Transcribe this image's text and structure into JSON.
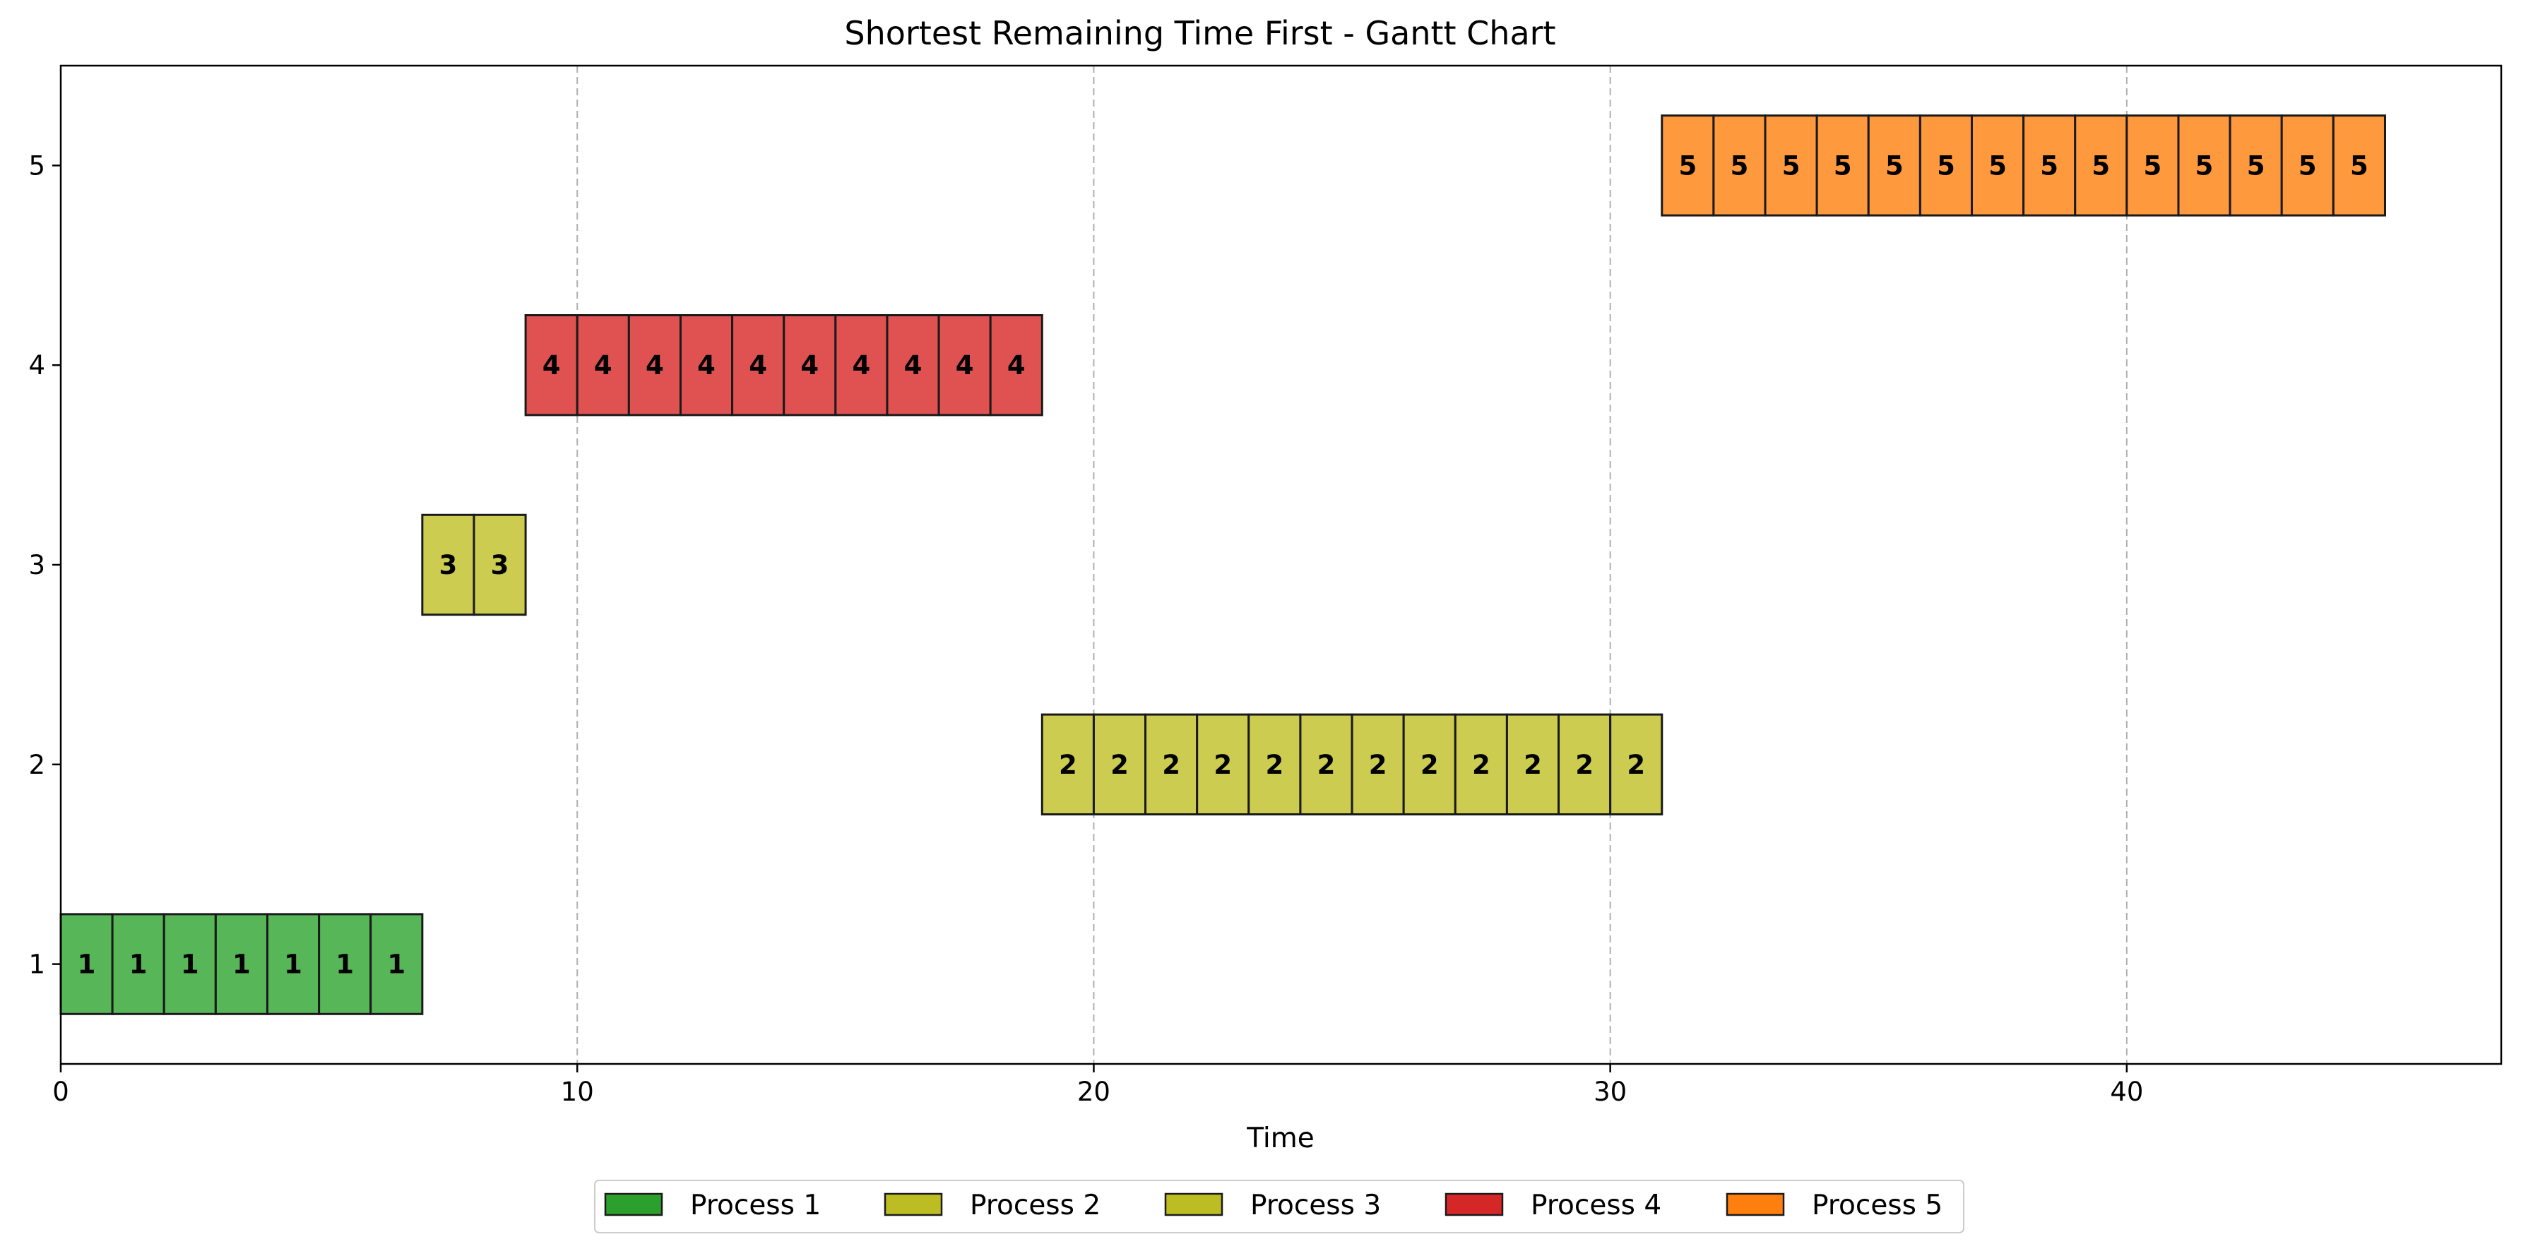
{
  "chart_data": {
    "type": "gantt",
    "title": "Shortest Remaining Time First - Gantt Chart",
    "xlabel": "Time",
    "ylabel": "",
    "xlim": [
      0,
      47.25
    ],
    "ylim": [
      0.5,
      5.5
    ],
    "x_ticks": [
      0,
      10,
      20,
      30,
      40
    ],
    "y_ticks": [
      1,
      2,
      3,
      4,
      5
    ],
    "grid": "vertical dashed lines at x ticks",
    "legend_position": "bottom-center",
    "processes": [
      {
        "name": "Process 1",
        "row": 1,
        "label": "1",
        "start": 0,
        "end": 7,
        "unit": 1,
        "color": "#2ca02c",
        "fill": "#57b657"
      },
      {
        "name": "Process 2",
        "row": 2,
        "label": "2",
        "start": 19,
        "end": 31,
        "unit": 1,
        "color": "#bcbd22",
        "fill": "#cccc50"
      },
      {
        "name": "Process 3",
        "row": 3,
        "label": "3",
        "start": 7,
        "end": 9,
        "unit": 1,
        "color": "#bcbd22",
        "fill": "#cccc50"
      },
      {
        "name": "Process 4",
        "row": 4,
        "label": "4",
        "start": 9,
        "end": 19,
        "unit": 1,
        "color": "#d62728",
        "fill": "#e05252"
      },
      {
        "name": "Process 5",
        "row": 5,
        "label": "5",
        "start": 31,
        "end": 45,
        "unit": 1,
        "color": "#ff7f0e",
        "fill": "#ff993e"
      }
    ]
  }
}
